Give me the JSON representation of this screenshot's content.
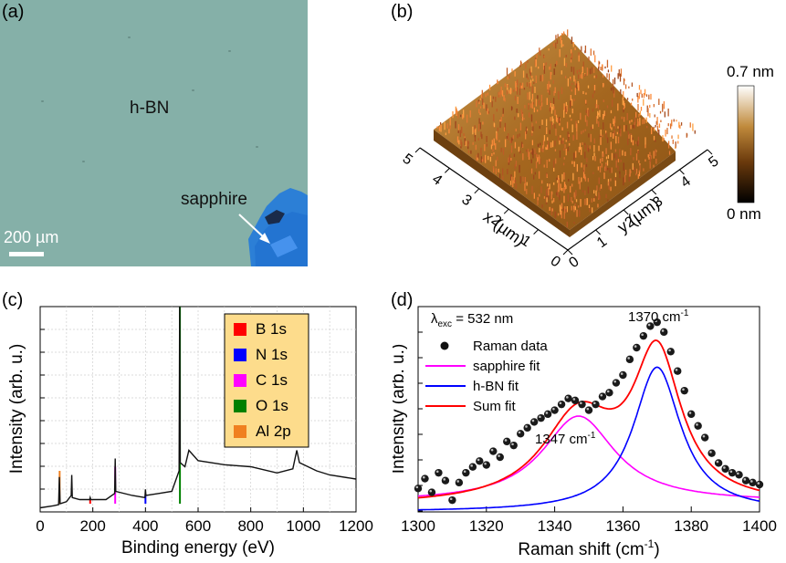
{
  "panels": {
    "a": {
      "label": "(a)",
      "material_label": "h-BN",
      "substrate_label": "sapphire",
      "scale_bar_label": "200 µm"
    },
    "b": {
      "label": "(b)",
      "colorbar_max": "0.7 nm",
      "colorbar_min": "0 nm",
      "x_axis_label": "x (µm)",
      "y_axis_label": "y (µm)",
      "x_ticks": [
        "5",
        "4",
        "3",
        "2",
        "1",
        "0"
      ],
      "y_ticks": [
        "0",
        "1",
        "2",
        "3",
        "4",
        "5"
      ],
      "colors": {
        "low": "#000000",
        "mid": "#a0621a",
        "high": "#ffffff"
      }
    },
    "c": {
      "label": "(c)",
      "xlabel": "Binding energy (eV)",
      "ylabel": "Intensity (arb. u.)",
      "x_ticks": [
        "0",
        "200",
        "400",
        "600",
        "800",
        "1000",
        "1200"
      ],
      "legend": [
        {
          "name": "B 1s",
          "color": "#ff0000"
        },
        {
          "name": "N 1s",
          "color": "#0000ff"
        },
        {
          "name": "C 1s",
          "color": "#ff00ff"
        },
        {
          "name": "O 1s",
          "color": "#008000"
        },
        {
          "name": "Al 2p",
          "color": "#f08020"
        }
      ]
    },
    "d": {
      "label": "(d)",
      "wavelength_label": "λexc = 532 nm",
      "wl_lambda": "λ",
      "wl_sub": "exc",
      "wl_rest": " = 532 nm",
      "peak1": "1370 cm",
      "peak2": "1347 cm",
      "sup": "-1",
      "xlabel": "Raman shift (cm",
      "xlabel_end": ")",
      "ylabel": "Intensity (arb. u.)",
      "x_ticks": [
        "1300",
        "1320",
        "1340",
        "1360",
        "1380",
        "1400"
      ],
      "legend": [
        {
          "name": "Raman data",
          "color": "#111111"
        },
        {
          "name": "sapphire fit",
          "color": "#ff00ff"
        },
        {
          "name": "h-BN fit",
          "color": "#0000ff"
        },
        {
          "name": "Sum fit",
          "color": "#ff0000"
        }
      ]
    }
  },
  "chart_data": [
    {
      "type": "line",
      "panel": "c",
      "xlabel": "Binding energy (eV)",
      "ylabel": "Intensity (arb. u.)",
      "xlim": [
        0,
        1200
      ],
      "ylim": [
        0,
        1
      ],
      "grid": true,
      "legend_position": "top-right",
      "survey": {
        "x": [
          0,
          50,
          70,
          73,
          76,
          100,
          118,
          120,
          122,
          150,
          188,
          190,
          192,
          250,
          283,
          285,
          287,
          350,
          398,
          400,
          402,
          450,
          500,
          528,
          530,
          532,
          550,
          565,
          600,
          700,
          800,
          900,
          960,
          975,
          985,
          1050,
          1100,
          1200
        ],
        "y": [
          0.02,
          0.03,
          0.035,
          0.17,
          0.04,
          0.05,
          0.08,
          0.18,
          0.07,
          0.06,
          0.06,
          0.07,
          0.06,
          0.06,
          0.09,
          0.26,
          0.1,
          0.08,
          0.07,
          0.11,
          0.08,
          0.09,
          0.1,
          0.2,
          1.0,
          0.24,
          0.22,
          0.3,
          0.25,
          0.23,
          0.22,
          0.19,
          0.21,
          0.3,
          0.24,
          0.2,
          0.18,
          0.16
        ]
      },
      "peaks": [
        {
          "name": "B 1s",
          "x": 190,
          "height": 0.02
        },
        {
          "name": "N 1s",
          "x": 400,
          "height": 0.04
        },
        {
          "name": "C 1s",
          "x": 285,
          "height": 0.18
        },
        {
          "name": "O 1s",
          "x": 531,
          "height": 0.98
        },
        {
          "name": "Al 2p",
          "x": 74,
          "height": 0.16
        }
      ]
    },
    {
      "type": "scatter",
      "panel": "d",
      "xlabel": "Raman shift (cm-1)",
      "ylabel": "Intensity (arb. u.)",
      "xlim": [
        1300,
        1400
      ],
      "ylim": [
        0,
        1.05
      ],
      "series": [
        {
          "name": "Raman data",
          "x": [
            1300,
            1302,
            1304,
            1306,
            1308,
            1310,
            1312,
            1314,
            1316,
            1318,
            1320,
            1322,
            1324,
            1326,
            1328,
            1330,
            1332,
            1334,
            1336,
            1338,
            1340,
            1342,
            1344,
            1346,
            1348,
            1350,
            1352,
            1354,
            1356,
            1358,
            1360,
            1362,
            1364,
            1366,
            1368,
            1370,
            1372,
            1374,
            1376,
            1378,
            1380,
            1382,
            1384,
            1386,
            1388,
            1390,
            1392,
            1394,
            1396,
            1398,
            1400
          ],
          "y": [
            0.12,
            0.17,
            0.1,
            0.2,
            0.16,
            0.06,
            0.15,
            0.2,
            0.23,
            0.26,
            0.24,
            0.31,
            0.28,
            0.36,
            0.34,
            0.4,
            0.43,
            0.46,
            0.48,
            0.5,
            0.52,
            0.55,
            0.58,
            0.57,
            0.55,
            0.52,
            0.55,
            0.59,
            0.61,
            0.66,
            0.7,
            0.78,
            0.84,
            0.9,
            0.95,
            0.97,
            0.92,
            0.82,
            0.72,
            0.62,
            0.5,
            0.44,
            0.38,
            0.3,
            0.25,
            0.22,
            0.2,
            0.19,
            0.16,
            0.15,
            0.14
          ]
        }
      ],
      "fits": [
        {
          "name": "sapphire fit",
          "center": 1347,
          "fwhm": 26,
          "amplitude": 0.44,
          "baseline": 0.05
        },
        {
          "name": "h-BN fit",
          "center": 1370,
          "fwhm": 17,
          "amplitude": 0.74,
          "baseline": 0.0
        }
      ]
    }
  ]
}
